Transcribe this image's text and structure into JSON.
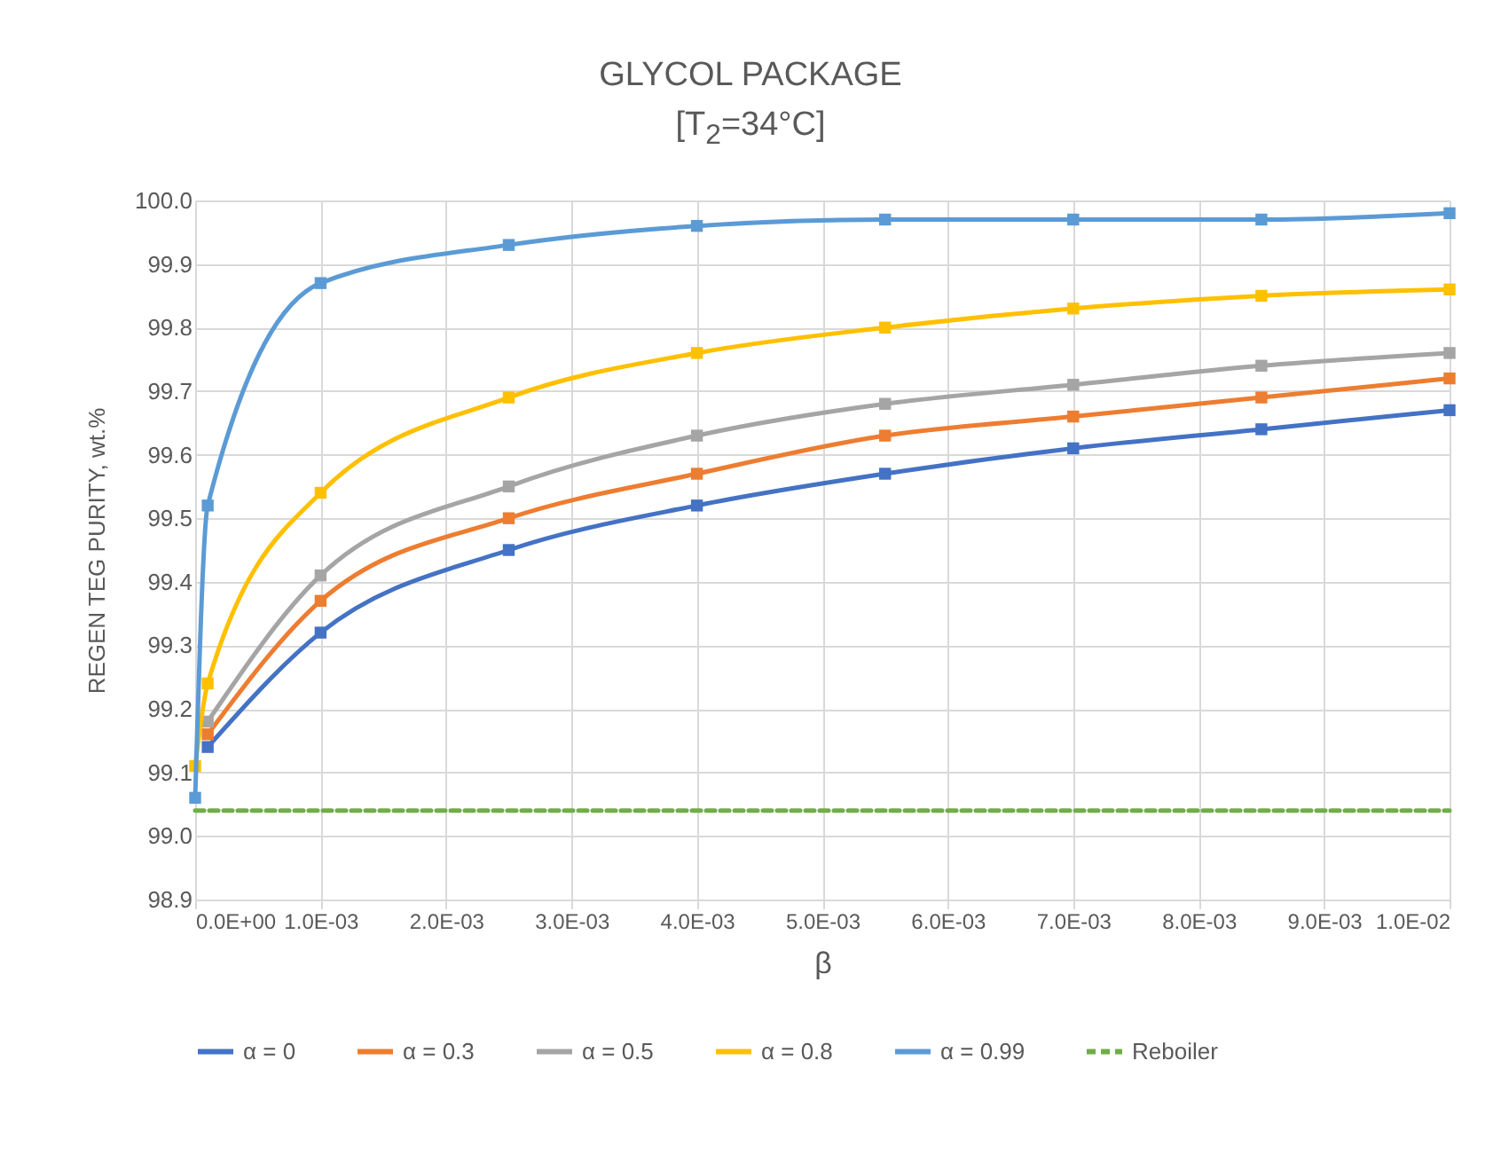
{
  "chart_data": {
    "type": "line",
    "title": "GLYCOL PACKAGE",
    "subtitle": "[T$_{2}$=34°C]",
    "xlabel": "β",
    "ylabel": "REGEN TEG PURITY, wt.%",
    "x": [
      0,
      0.0001,
      0.001,
      0.0025,
      0.004,
      0.0055,
      0.007,
      0.0085,
      0.01
    ],
    "series": [
      {
        "name": "α = 0",
        "color": "#4472c4",
        "values": [
          null,
          99.14,
          99.32,
          99.45,
          99.52,
          99.57,
          99.61,
          99.64,
          99.67
        ]
      },
      {
        "name": "α = 0.3",
        "color": "#ed7d31",
        "values": [
          null,
          99.16,
          99.37,
          99.5,
          99.57,
          99.63,
          99.66,
          99.69,
          99.72
        ]
      },
      {
        "name": "α = 0.5",
        "color": "#a5a5a5",
        "values": [
          null,
          99.18,
          99.41,
          99.55,
          99.63,
          99.68,
          99.71,
          99.74,
          99.76
        ]
      },
      {
        "name": "α = 0.8",
        "color": "#ffc000",
        "values": [
          99.11,
          99.24,
          99.54,
          99.69,
          99.76,
          99.8,
          99.83,
          99.85,
          99.86
        ]
      },
      {
        "name": "α = 0.99",
        "color": "#5b9bd5",
        "values": [
          99.06,
          99.52,
          99.87,
          99.93,
          99.96,
          99.97,
          99.97,
          99.97,
          99.98
        ]
      },
      {
        "name": "Reboiler",
        "color": "#70ad47",
        "type": "line",
        "line_style": "dashed",
        "marker": "none",
        "x": [
          0,
          0.01
        ],
        "values": [
          99.04,
          99.04
        ]
      }
    ],
    "xlim": [
      0,
      0.01
    ],
    "xticks": [
      {
        "value": 0,
        "label": "0.0E+00"
      },
      {
        "value": 0.001,
        "label": "1.0E-03"
      },
      {
        "value": 0.002,
        "label": "2.0E-03"
      },
      {
        "value": 0.003,
        "label": "3.0E-03"
      },
      {
        "value": 0.004,
        "label": "4.0E-03"
      },
      {
        "value": 0.005,
        "label": "5.0E-03"
      },
      {
        "value": 0.006,
        "label": "6.0E-03"
      },
      {
        "value": 0.007,
        "label": "7.0E-03"
      },
      {
        "value": 0.008,
        "label": "8.0E-03"
      },
      {
        "value": 0.009,
        "label": "9.0E-03"
      },
      {
        "value": 0.01,
        "label": "1.0E-02"
      }
    ],
    "ylim": [
      98.9,
      100
    ],
    "yticks": [
      {
        "value": 98.9,
        "label": "98.9"
      },
      {
        "value": 99,
        "label": "99.0"
      },
      {
        "value": 99.1,
        "label": "99.1"
      },
      {
        "value": 99.2,
        "label": "99.2"
      },
      {
        "value": 99.3,
        "label": "99.3"
      },
      {
        "value": 99.4,
        "label": "99.4"
      },
      {
        "value": 99.5,
        "label": "99.5"
      },
      {
        "value": 99.6,
        "label": "99.6"
      },
      {
        "value": 99.7,
        "label": "99.7"
      },
      {
        "value": 99.8,
        "label": "99.8"
      },
      {
        "value": 99.9,
        "label": "99.9"
      },
      {
        "value": 100,
        "label": "100.0"
      }
    ],
    "grid": true,
    "legend": "bottom",
    "marker": "square",
    "line_style": "solid"
  }
}
